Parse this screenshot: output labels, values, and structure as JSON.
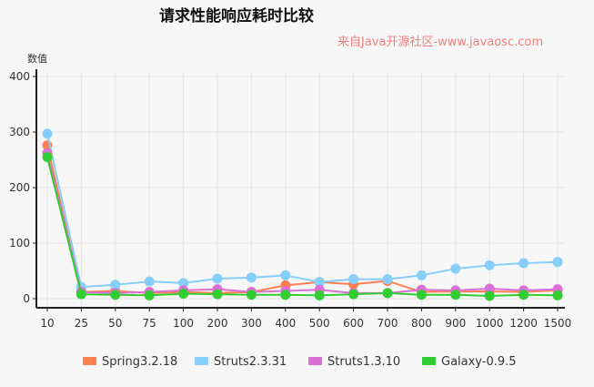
{
  "chart_data": {
    "type": "line",
    "title": "请求性能响应耗时比较",
    "subtitle": "来自Java开源社区-www.javaosc.com",
    "xlabel": "",
    "ylabel": "数值",
    "categories": [
      "10",
      "25",
      "50",
      "75",
      "100",
      "200",
      "300",
      "400",
      "500",
      "600",
      "700",
      "800",
      "900",
      "1000",
      "1200",
      "1500"
    ],
    "ylim": [
      0,
      400
    ],
    "yticks": [
      0,
      100,
      200,
      300,
      400
    ],
    "grid": true,
    "legend": "bottom",
    "series": [
      {
        "name": "Spring3.2.18",
        "color": "#ff7f50",
        "values": [
          276,
          12,
          14,
          10,
          12,
          10,
          12,
          24,
          30,
          26,
          32,
          12,
          13,
          13,
          12,
          15
        ]
      },
      {
        "name": "Struts2.3.31",
        "color": "#87cefa",
        "values": [
          297,
          21,
          25,
          31,
          28,
          36,
          38,
          42,
          30,
          35,
          35,
          42,
          54,
          60,
          64,
          66
        ]
      },
      {
        "name": "Struts1.3.10",
        "color": "#da70d6",
        "values": [
          262,
          12,
          10,
          12,
          15,
          17,
          12,
          14,
          16,
          10,
          10,
          16,
          15,
          18,
          15,
          17
        ]
      },
      {
        "name": "Galaxy-0.9.5",
        "color": "#32cd32",
        "values": [
          255,
          8,
          7,
          6,
          9,
          8,
          7,
          7,
          6,
          8,
          10,
          7,
          7,
          5,
          7,
          6
        ]
      }
    ]
  }
}
